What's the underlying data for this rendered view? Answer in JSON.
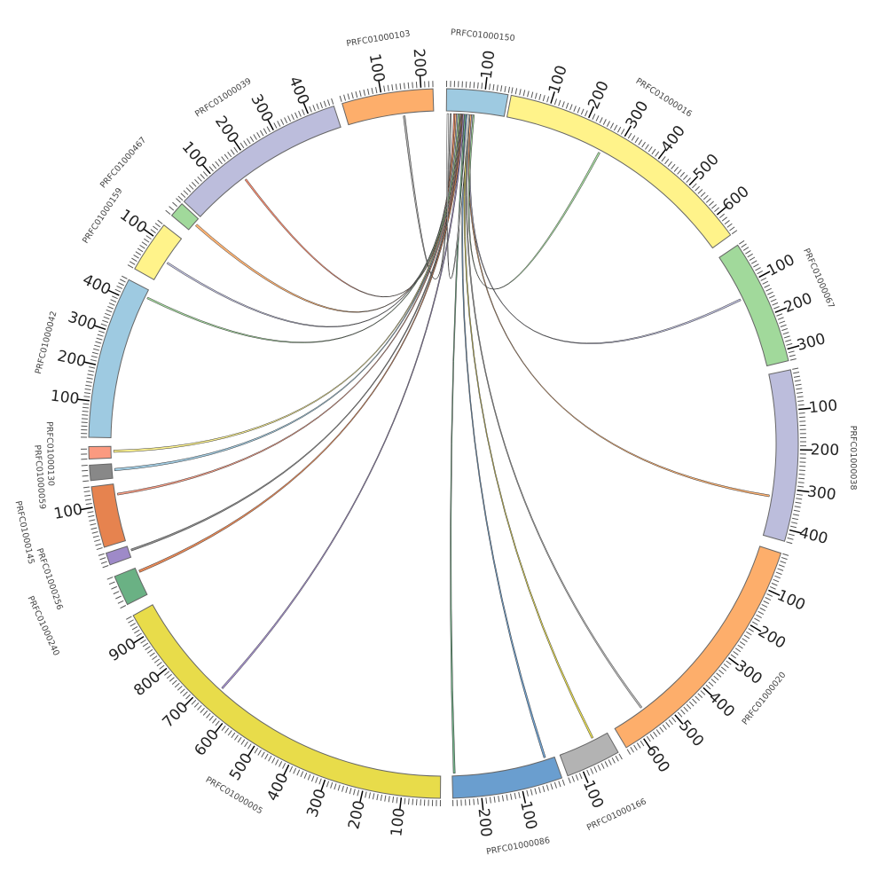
{
  "chart_data": {
    "type": "chord",
    "title": "",
    "segments": [
      {
        "name": "PRFC01000150",
        "length": 160,
        "color": "#9ecae1"
      },
      {
        "name": "PRFC01000016",
        "length": 660,
        "color": "#fff38a"
      },
      {
        "name": "PRFC01000067",
        "length": 330,
        "color": "#a1d99b"
      },
      {
        "name": "PRFC01000038",
        "length": 430,
        "color": "#bcbddc"
      },
      {
        "name": "PRFC01000020",
        "length": 650,
        "color": "#fdae6b"
      },
      {
        "name": "PRFC01000166",
        "length": 140,
        "color": "#b3b3b3"
      },
      {
        "name": "PRFC01000086",
        "length": 270,
        "color": "#6a9ecf"
      },
      {
        "name": "PRFC01000005",
        "length": 960,
        "color": "#e8dc4a"
      },
      {
        "name": "PRFC01000240",
        "length": 60,
        "color": "#6ab184"
      },
      {
        "name": "PRFC01000256",
        "length": 30,
        "color": "#9e8ac8"
      },
      {
        "name": "PRFC01000145",
        "length": 150,
        "color": "#e6834f"
      },
      {
        "name": "PRFC01000059",
        "length": 30,
        "color": "#888888"
      },
      {
        "name": "PRFC01000130",
        "length": 25,
        "color": "#fb9a80"
      },
      {
        "name": "PRFC01000042",
        "length": 450,
        "color": "#9ecae1"
      },
      {
        "name": "PRFC01000159",
        "length": 140,
        "color": "#fff38a"
      },
      {
        "name": "PRFC01000467",
        "length": 30,
        "color": "#a1d99b"
      },
      {
        "name": "PRFC01000039",
        "length": 470,
        "color": "#bcbddc"
      },
      {
        "name": "PRFC01000103",
        "length": 230,
        "color": "#fdae6b"
      }
    ],
    "links": [
      {
        "source": "PRFC01000150",
        "source_pos": 10,
        "target": "PRFC01000103",
        "target_pos": 148,
        "color": "#aaaaaa"
      },
      {
        "source": "PRFC01000150",
        "source_pos": 20,
        "target": "PRFC01000039",
        "target_pos": 162,
        "color": "#f4876a"
      },
      {
        "source": "PRFC01000150",
        "source_pos": 24,
        "target": "PRFC01000467",
        "target_pos": 15,
        "color": "#fdae6b"
      },
      {
        "source": "PRFC01000150",
        "source_pos": 28,
        "target": "PRFC01000159",
        "target_pos": 58,
        "color": "#bcbddc"
      },
      {
        "source": "PRFC01000150",
        "source_pos": 32,
        "target": "PRFC01000042",
        "target_pos": 425,
        "color": "#a1d99b"
      },
      {
        "source": "PRFC01000150",
        "source_pos": 36,
        "target": "PRFC01000130",
        "target_pos": 12,
        "color": "#fff38a"
      },
      {
        "source": "PRFC01000150",
        "source_pos": 38,
        "target": "PRFC01000059",
        "target_pos": 15,
        "color": "#9ecae1"
      },
      {
        "source": "PRFC01000150",
        "source_pos": 40,
        "target": "PRFC01000145",
        "target_pos": 120,
        "color": "#fb9a80"
      },
      {
        "source": "PRFC01000150",
        "source_pos": 42,
        "target": "PRFC01000256",
        "target_pos": 15,
        "color": "#888888"
      },
      {
        "source": "PRFC01000150",
        "source_pos": 44,
        "target": "PRFC01000240",
        "target_pos": 48,
        "color": "#e6834f"
      },
      {
        "source": "PRFC01000150",
        "source_pos": 46,
        "target": "PRFC01000005",
        "target_pos": 658,
        "color": "#9e8ac8"
      },
      {
        "source": "PRFC01000150",
        "source_pos": 50,
        "target": "PRFC01000086",
        "target_pos": 262,
        "color": "#6ab184"
      },
      {
        "source": "PRFC01000150",
        "source_pos": 54,
        "target": "PRFC01000086",
        "target_pos": 22,
        "color": "#6a9ecf"
      },
      {
        "source": "PRFC01000150",
        "source_pos": 58,
        "target": "PRFC01000166",
        "target_pos": 39,
        "color": "#e8dc4a"
      },
      {
        "source": "PRFC01000150",
        "source_pos": 62,
        "target": "PRFC01000020",
        "target_pos": 555,
        "color": "#b3b3b3"
      },
      {
        "source": "PRFC01000150",
        "source_pos": 66,
        "target": "PRFC01000038",
        "target_pos": 322,
        "color": "#fdae6b"
      },
      {
        "source": "PRFC01000150",
        "source_pos": 70,
        "target": "PRFC01000067",
        "target_pos": 129,
        "color": "#bcbddc"
      },
      {
        "source": "PRFC01000150",
        "source_pos": 74,
        "target": "PRFC01000016",
        "target_pos": 261,
        "color": "#a1d99b"
      },
      {
        "source": "PRFC01000150",
        "source_pos": 2,
        "target": "PRFC01000150",
        "target_pos": 58,
        "color": "#ffffff"
      }
    ],
    "tick_interval": 100,
    "minor_tick_interval": 10
  }
}
